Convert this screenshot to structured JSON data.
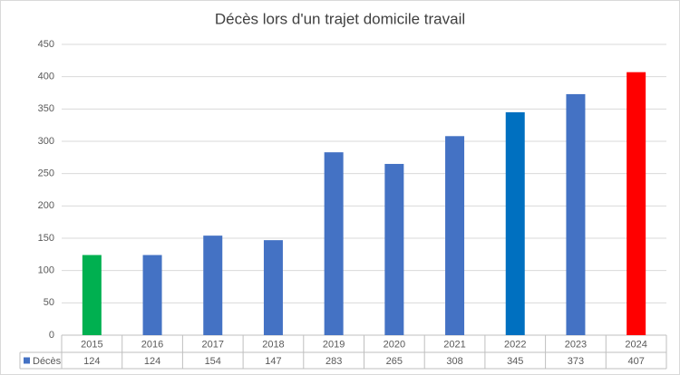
{
  "chart_data": {
    "type": "bar",
    "title": "Décès lors d'un  trajet domicile travail",
    "categories": [
      "2015",
      "2016",
      "2017",
      "2018",
      "2019",
      "2020",
      "2021",
      "2022",
      "2023",
      "2024"
    ],
    "series": [
      {
        "name": "Décès",
        "color": "#4472c4",
        "values": [
          124,
          124,
          154,
          147,
          283,
          265,
          308,
          345,
          373,
          407
        ],
        "point_colors": [
          "#00b050",
          "#4472c4",
          "#4472c4",
          "#4472c4",
          "#4472c4",
          "#4472c4",
          "#4472c4",
          "#0070c0",
          "#4472c4",
          "#ff0000"
        ]
      }
    ],
    "ylim": [
      0,
      450
    ],
    "yticks": [
      0,
      50,
      100,
      150,
      200,
      250,
      300,
      350,
      400,
      450
    ],
    "grid": true,
    "data_table": true
  }
}
